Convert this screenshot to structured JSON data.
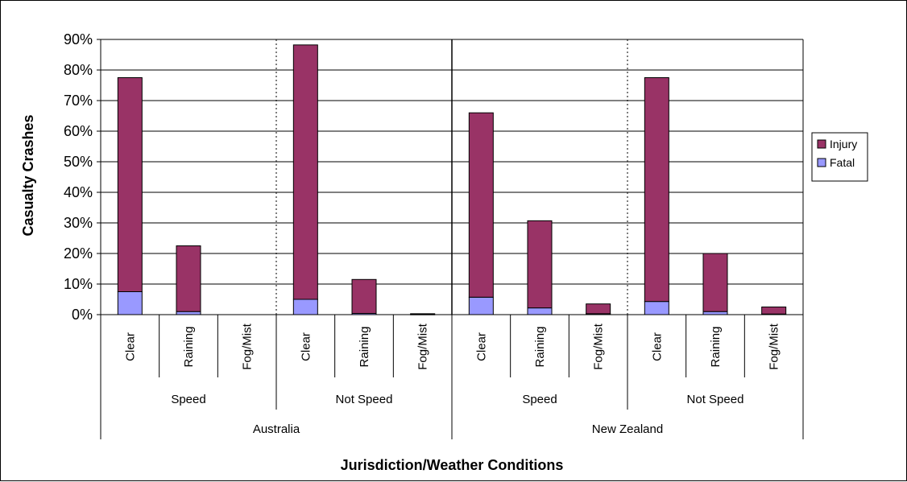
{
  "chart_data": {
    "type": "bar",
    "stacked": true,
    "xlabel": "Jurisdiction/Weather Conditions",
    "ylabel": "Casualty Crashes",
    "ylim": [
      0,
      90
    ],
    "yticks": [
      "0%",
      "10%",
      "20%",
      "30%",
      "40%",
      "50%",
      "60%",
      "70%",
      "80%",
      "90%"
    ],
    "grid": true,
    "legend_position": "right",
    "categories": [
      "Clear",
      "Raining",
      "Fog/Mist",
      "Clear",
      "Raining",
      "Fog/Mist",
      "Clear",
      "Raining",
      "Fog/Mist",
      "Clear",
      "Raining",
      "Fog/Mist"
    ],
    "subgroups": [
      {
        "label": "Speed",
        "count": 3
      },
      {
        "label": "Not Speed",
        "count": 3
      },
      {
        "label": "Speed",
        "count": 3
      },
      {
        "label": "Not Speed",
        "count": 3
      }
    ],
    "groups": [
      {
        "label": "Australia",
        "count": 6
      },
      {
        "label": "New Zealand",
        "count": 6
      }
    ],
    "series": [
      {
        "name": "Fatal",
        "color": "#9999ff",
        "values": [
          7.5,
          1.0,
          0,
          5.0,
          0.4,
          0.1,
          5.7,
          2.2,
          0.3,
          4.3,
          1.0,
          0.2
        ]
      },
      {
        "name": "Injury",
        "color": "#993366",
        "values": [
          70.0,
          21.5,
          0,
          83.2,
          11.1,
          0.2,
          60.3,
          28.5,
          3.2,
          73.2,
          19.0,
          2.3
        ]
      }
    ]
  }
}
